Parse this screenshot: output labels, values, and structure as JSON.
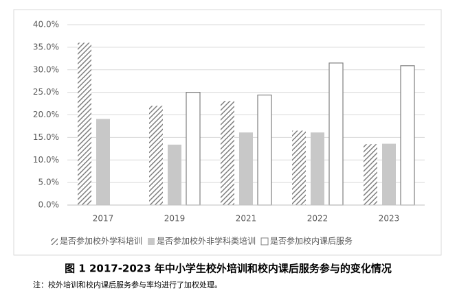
{
  "chart_data": {
    "type": "bar",
    "categories": [
      "2017",
      "2019",
      "2021",
      "2022",
      "2023"
    ],
    "series": [
      {
        "name": "是否参加校外学科培训",
        "color": "#7f7f7f",
        "pattern": "hatch",
        "values": [
          36.0,
          22.0,
          23.1,
          16.5,
          13.5
        ]
      },
      {
        "name": "是否参加校外非学科类培训",
        "color": "#c8c8c8",
        "pattern": "solid",
        "values": [
          19.1,
          13.4,
          16.1,
          16.1,
          13.6
        ]
      },
      {
        "name": "是否参加校内课后服务",
        "color": "#ffffff",
        "pattern": "outline",
        "values": [
          null,
          25.0,
          24.4,
          31.5,
          30.9
        ]
      }
    ],
    "ylim": [
      0,
      40
    ],
    "yticks": [
      {
        "value": 0,
        "label": "0.0%"
      },
      {
        "value": 5,
        "label": "5.0%"
      },
      {
        "value": 10,
        "label": "10.0%"
      },
      {
        "value": 15,
        "label": "15.0%"
      },
      {
        "value": 20,
        "label": "20.0%"
      },
      {
        "value": 25,
        "label": "25.0%"
      },
      {
        "value": 30,
        "label": "30.0%"
      },
      {
        "value": 35,
        "label": "35.0%"
      },
      {
        "value": 40,
        "label": "40.0%"
      }
    ],
    "grid": true,
    "legend": "bottom",
    "caption": "图 1   2017-2023 年中小学生校外培训和校内课后服务参与的变化情况",
    "note": "注：校外培训和校内课后服务参与率均进行了加权处理。"
  }
}
